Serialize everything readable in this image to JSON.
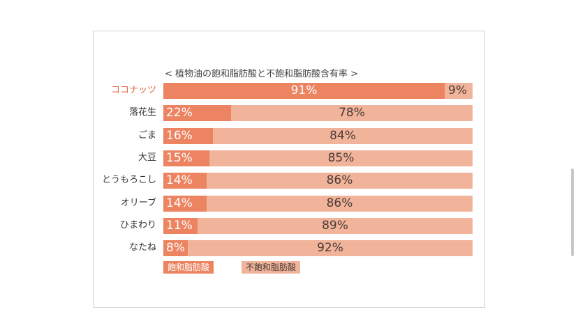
{
  "chart_data": {
    "type": "bar",
    "stacked": true,
    "orientation": "horizontal",
    "title": "< 植物油の飽和脂肪酸と不飽和脂肪酸含有率 >",
    "categories": [
      "ココナッツ",
      "落花生",
      "ごま",
      "大豆",
      "とうもろこし",
      "オリーブ",
      "ひまわり",
      "なたね"
    ],
    "highlighted_category": "ココナッツ",
    "series": [
      {
        "name": "飽和脂肪酸",
        "values": [
          91,
          22,
          16,
          15,
          14,
          14,
          11,
          8
        ],
        "labels": [
          "91%",
          "22%",
          "16%",
          "15%",
          "14%",
          "14%",
          "11%",
          "8%"
        ]
      },
      {
        "name": "不飽和脂肪酸",
        "values": [
          9,
          78,
          84,
          85,
          86,
          86,
          89,
          92
        ],
        "labels": [
          "9%",
          "78%",
          "84%",
          "85%",
          "86%",
          "86%",
          "89%",
          "92%"
        ]
      }
    ],
    "xlim": [
      0,
      100
    ],
    "legend_placement": "bottom-left",
    "colors": {
      "saturated": "#ec8462",
      "unsaturated": "#f1b49b",
      "highlight_label": "#e2623f"
    }
  }
}
